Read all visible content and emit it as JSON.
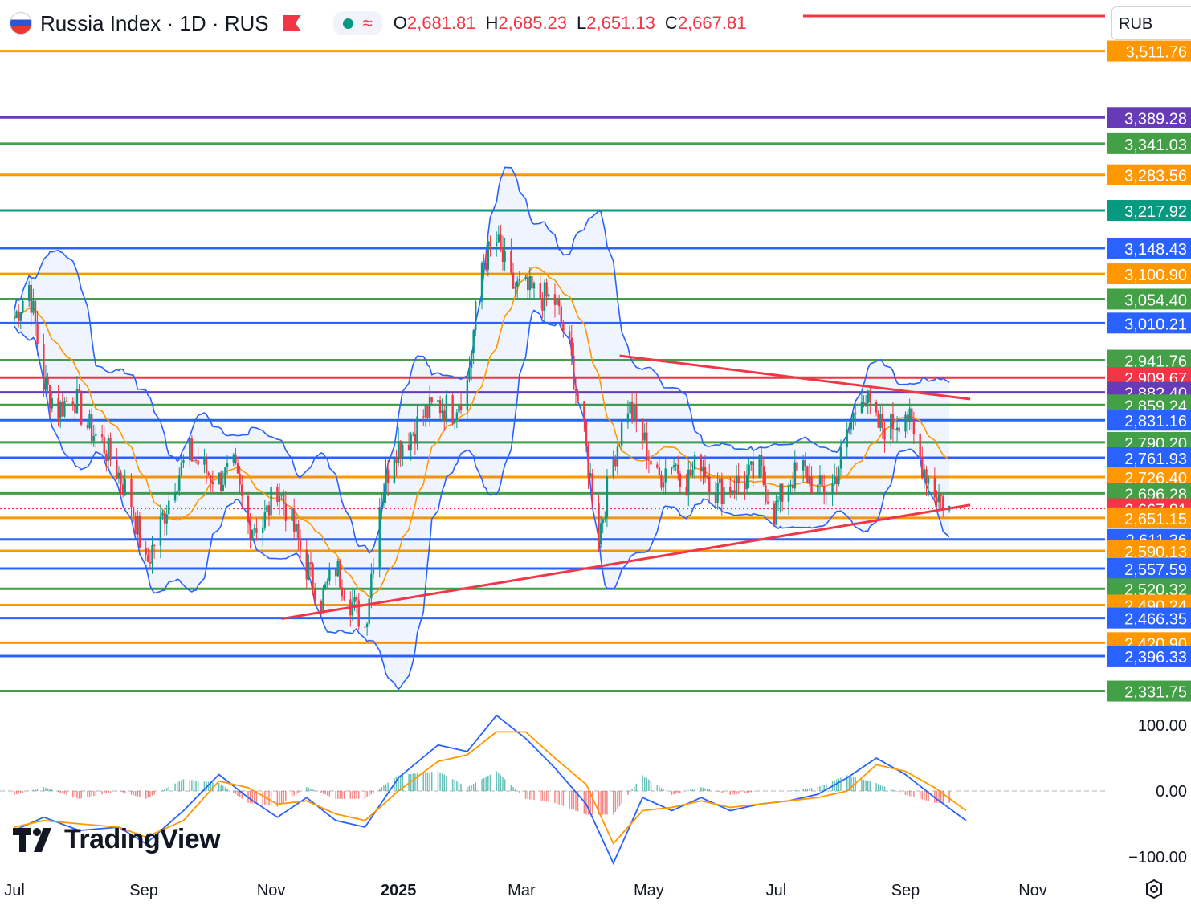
{
  "header": {
    "symbol_title": "Russia Index · 1D · RUS",
    "open_label": "O",
    "open": "2,681.81",
    "high_label": "H",
    "high": "2,685.23",
    "low_label": "L",
    "low": "2,651.13",
    "close_label": "C",
    "close": "2,667.81",
    "currency": "RUB"
  },
  "branding": {
    "logo_text": "TradingView"
  },
  "icons": {
    "flag": "russia-flag-icon",
    "marker": "flag-marker-icon",
    "status": "green-dot-icon",
    "indicator": "wave-icon",
    "settings": "gear-icon"
  },
  "colors": {
    "up": "#089981",
    "down": "#f23645",
    "orange": "#ff9800",
    "blue": "#2962ff",
    "green": "#43a047",
    "purple": "#673ab7",
    "trend": "#f23645",
    "band": "#2962ff",
    "ma": "#ff9800"
  },
  "chart_data": [
    {
      "type": "candlestick",
      "title": "Russia Index · 1D · RUS",
      "xlabel": "",
      "ylabel": "",
      "ylim": [
        2300,
        3520
      ],
      "x_ticks": [
        "Jul",
        "Sep",
        "Nov",
        "2025",
        "Mar",
        "May",
        "Jul",
        "Sep",
        "Nov"
      ],
      "x_tick_months": [
        "2024-07-01",
        "2024-09-01",
        "2024-11-01",
        "2025-01-01",
        "2025-03-01",
        "2025-05-01",
        "2025-07-01",
        "2025-09-01",
        "2025-11-01"
      ],
      "last_price": 2667.81,
      "price_levels": [
        {
          "value": 3511.76,
          "label": "3,511.76",
          "color": "#ff9800"
        },
        {
          "value": 3389.28,
          "label": "3,389.28",
          "color": "#673ab7"
        },
        {
          "value": 3341.03,
          "label": "3,341.03",
          "color": "#43a047"
        },
        {
          "value": 3283.56,
          "label": "3,283.56",
          "color": "#ff9800"
        },
        {
          "value": 3217.92,
          "label": "3,217.92",
          "color": "#089981"
        },
        {
          "value": 3148.43,
          "label": "3,148.43",
          "color": "#2962ff"
        },
        {
          "value": 3100.9,
          "label": "3,100.90",
          "color": "#ff9800"
        },
        {
          "value": 3054.4,
          "label": "3,054.40",
          "color": "#43a047"
        },
        {
          "value": 3010.21,
          "label": "3,010.21",
          "color": "#2962ff"
        },
        {
          "value": 2941.76,
          "label": "2,941.76",
          "color": "#43a047"
        },
        {
          "value": 2909.67,
          "label": "2,909.67",
          "color": "#f23645"
        },
        {
          "value": 2882.4,
          "label": "2,882.40",
          "color": "#673ab7"
        },
        {
          "value": 2859.24,
          "label": "2,859.24",
          "color": "#43a047"
        },
        {
          "value": 2831.16,
          "label": "2,831.16",
          "color": "#2962ff"
        },
        {
          "value": 2790.2,
          "label": "2,790.20",
          "color": "#43a047"
        },
        {
          "value": 2761.93,
          "label": "2,761.93",
          "color": "#2962ff"
        },
        {
          "value": 2726.4,
          "label": "2,726.40",
          "color": "#ff9800"
        },
        {
          "value": 2696.28,
          "label": "2,696.28",
          "color": "#43a047"
        },
        {
          "value": 2667.81,
          "label": "2,667.81",
          "color": "#f23645"
        },
        {
          "value": 2651.15,
          "label": "2,651.15",
          "color": "#ff9800"
        },
        {
          "value": 2611.36,
          "label": "2,611.36",
          "color": "#2962ff"
        },
        {
          "value": 2590.13,
          "label": "2,590.13",
          "color": "#ff9800"
        },
        {
          "value": 2557.59,
          "label": "2,557.59",
          "color": "#2962ff"
        },
        {
          "value": 2520.32,
          "label": "2,520.32",
          "color": "#43a047"
        },
        {
          "value": 2490.24,
          "label": "2,490.24",
          "color": "#ff9800"
        },
        {
          "value": 2466.35,
          "label": "2,466.35",
          "color": "#2962ff"
        },
        {
          "value": 2420.9,
          "label": "2,420.90",
          "color": "#ff9800"
        },
        {
          "value": 2396.33,
          "label": "2,396.33",
          "color": "#2962ff"
        },
        {
          "value": 2331.75,
          "label": "2,331.75",
          "color": "#43a047"
        }
      ],
      "trendlines": [
        {
          "name": "resistance",
          "from": {
            "date": "2025-04-17",
            "value": 2950
          },
          "to": {
            "date": "2025-10-02",
            "value": 2870
          }
        },
        {
          "name": "support",
          "from": {
            "date": "2024-11-06",
            "value": 2465
          },
          "to": {
            "date": "2025-10-02",
            "value": 2675
          }
        }
      ],
      "price_path": [
        [
          "2024-07-01",
          3020
        ],
        [
          "2024-07-08",
          3080
        ],
        [
          "2024-07-15",
          2900
        ],
        [
          "2024-07-22",
          2850
        ],
        [
          "2024-07-29",
          2880
        ],
        [
          "2024-08-05",
          2820
        ],
        [
          "2024-08-12",
          2790
        ],
        [
          "2024-08-19",
          2740
        ],
        [
          "2024-08-26",
          2680
        ],
        [
          "2024-09-02",
          2560
        ],
        [
          "2024-09-09",
          2640
        ],
        [
          "2024-09-16",
          2720
        ],
        [
          "2024-09-23",
          2770
        ],
        [
          "2024-09-30",
          2740
        ],
        [
          "2024-10-07",
          2720
        ],
        [
          "2024-10-14",
          2740
        ],
        [
          "2024-10-21",
          2640
        ],
        [
          "2024-10-28",
          2640
        ],
        [
          "2024-11-04",
          2710
        ],
        [
          "2024-11-11",
          2640
        ],
        [
          "2024-11-18",
          2560
        ],
        [
          "2024-11-25",
          2500
        ],
        [
          "2024-12-02",
          2560
        ],
        [
          "2024-12-09",
          2500
        ],
        [
          "2024-12-16",
          2450
        ],
        [
          "2024-12-23",
          2680
        ],
        [
          "2024-12-30",
          2780
        ],
        [
          "2025-01-06",
          2800
        ],
        [
          "2025-01-13",
          2840
        ],
        [
          "2025-01-20",
          2860
        ],
        [
          "2025-01-27",
          2850
        ],
        [
          "2025-02-03",
          2900
        ],
        [
          "2025-02-10",
          3120
        ],
        [
          "2025-02-17",
          3160
        ],
        [
          "2025-02-24",
          3080
        ],
        [
          "2025-03-03",
          3070
        ],
        [
          "2025-03-10",
          3060
        ],
        [
          "2025-03-17",
          3050
        ],
        [
          "2025-03-24",
          2960
        ],
        [
          "2025-03-31",
          2800
        ],
        [
          "2025-04-07",
          2620
        ],
        [
          "2025-04-14",
          2760
        ],
        [
          "2025-04-21",
          2860
        ],
        [
          "2025-04-28",
          2800
        ],
        [
          "2025-05-05",
          2720
        ],
        [
          "2025-05-12",
          2760
        ],
        [
          "2025-05-19",
          2720
        ],
        [
          "2025-05-26",
          2760
        ],
        [
          "2025-06-02",
          2700
        ],
        [
          "2025-06-09",
          2710
        ],
        [
          "2025-06-16",
          2720
        ],
        [
          "2025-06-23",
          2740
        ],
        [
          "2025-06-30",
          2660
        ],
        [
          "2025-07-07",
          2720
        ],
        [
          "2025-07-14",
          2740
        ],
        [
          "2025-07-21",
          2700
        ],
        [
          "2025-07-28",
          2710
        ],
        [
          "2025-08-04",
          2800
        ],
        [
          "2025-08-11",
          2890
        ],
        [
          "2025-08-18",
          2820
        ],
        [
          "2025-08-25",
          2820
        ],
        [
          "2025-09-01",
          2850
        ],
        [
          "2025-09-08",
          2760
        ],
        [
          "2025-09-15",
          2700
        ],
        [
          "2025-09-22",
          2668
        ]
      ]
    },
    {
      "type": "line",
      "title": "",
      "ylim": [
        -110,
        110
      ],
      "y_ticks": [
        "100.00",
        "0.00",
        "−100.00"
      ],
      "y_tick_values": [
        100,
        0,
        -100
      ],
      "series": [
        {
          "values_path": [
            [
              "2024-07-01",
              -60
            ],
            [
              "2024-07-15",
              -40
            ],
            [
              "2024-08-01",
              -60
            ],
            [
              "2024-08-20",
              -55
            ],
            [
              "2024-09-02",
              -80
            ],
            [
              "2024-09-20",
              -30
            ],
            [
              "2024-10-07",
              25
            ],
            [
              "2024-10-21",
              -10
            ],
            [
              "2024-11-04",
              -40
            ],
            [
              "2024-11-18",
              -10
            ],
            [
              "2024-12-02",
              -45
            ],
            [
              "2024-12-16",
              -55
            ],
            [
              "2025-01-01",
              20
            ],
            [
              "2025-01-20",
              70
            ],
            [
              "2025-02-03",
              60
            ],
            [
              "2025-02-17",
              115
            ],
            [
              "2025-03-03",
              80
            ],
            [
              "2025-03-17",
              35
            ],
            [
              "2025-04-01",
              -20
            ],
            [
              "2025-04-14",
              -110
            ],
            [
              "2025-04-28",
              -10
            ],
            [
              "2025-05-12",
              -30
            ],
            [
              "2025-05-26",
              -10
            ],
            [
              "2025-06-09",
              -30
            ],
            [
              "2025-06-23",
              -20
            ],
            [
              "2025-07-07",
              -15
            ],
            [
              "2025-07-21",
              -5
            ],
            [
              "2025-08-04",
              20
            ],
            [
              "2025-08-18",
              50
            ],
            [
              "2025-09-01",
              25
            ],
            [
              "2025-09-15",
              -10
            ],
            [
              "2025-09-30",
              -45
            ]
          ]
        },
        {
          "values_path": [
            [
              "2024-07-01",
              -55
            ],
            [
              "2024-07-15",
              -45
            ],
            [
              "2024-08-01",
              -50
            ],
            [
              "2024-08-20",
              -55
            ],
            [
              "2024-09-02",
              -70
            ],
            [
              "2024-09-20",
              -45
            ],
            [
              "2024-10-07",
              15
            ],
            [
              "2024-10-21",
              5
            ],
            [
              "2024-11-04",
              -20
            ],
            [
              "2024-11-18",
              -15
            ],
            [
              "2024-12-02",
              -35
            ],
            [
              "2024-12-16",
              -45
            ],
            [
              "2025-01-01",
              0
            ],
            [
              "2025-01-20",
              45
            ],
            [
              "2025-02-03",
              55
            ],
            [
              "2025-02-17",
              90
            ],
            [
              "2025-03-03",
              90
            ],
            [
              "2025-03-17",
              50
            ],
            [
              "2025-04-01",
              10
            ],
            [
              "2025-04-14",
              -80
            ],
            [
              "2025-04-28",
              -30
            ],
            [
              "2025-05-12",
              -25
            ],
            [
              "2025-05-26",
              -15
            ],
            [
              "2025-06-09",
              -25
            ],
            [
              "2025-06-23",
              -20
            ],
            [
              "2025-07-07",
              -15
            ],
            [
              "2025-07-21",
              -10
            ],
            [
              "2025-08-04",
              0
            ],
            [
              "2025-08-18",
              40
            ],
            [
              "2025-09-01",
              30
            ],
            [
              "2025-09-15",
              5
            ],
            [
              "2025-09-30",
              -30
            ]
          ]
        }
      ]
    }
  ]
}
